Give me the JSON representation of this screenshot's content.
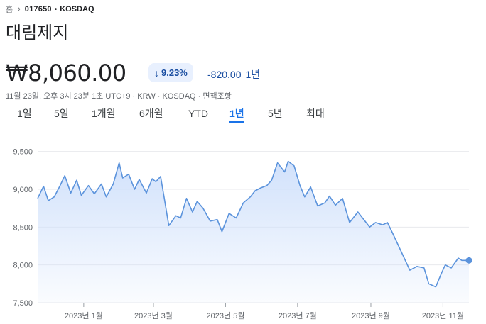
{
  "breadcrumb": {
    "home": "홈",
    "chevron": "›",
    "ticker": "017650",
    "separator": "•",
    "exchange": "KOSDAQ"
  },
  "stock": {
    "name": "대림제지",
    "price": "₩8,060.00",
    "change_percent": "9.23%",
    "change_abs": "-820.00",
    "change_period": "1년",
    "meta": "11월 23일, 오후 3시 23분 1초 UTC+9 · KRW · KOSDAQ · 면책조항"
  },
  "tabs": [
    {
      "label": "1일",
      "active": false
    },
    {
      "label": "5일",
      "active": false
    },
    {
      "label": "1개월",
      "active": false
    },
    {
      "label": "6개월",
      "active": false
    },
    {
      "label": "YTD",
      "active": false
    },
    {
      "label": "1년",
      "active": true
    },
    {
      "label": "5년",
      "active": false
    },
    {
      "label": "최대",
      "active": false
    }
  ],
  "colors": {
    "accent": "#1a73e8",
    "line": "#5b93dc",
    "negative": "#1a4ea1",
    "fill_top": "#cfe0fb"
  },
  "chart_data": {
    "type": "area",
    "title": "",
    "xlabel": "",
    "ylabel": "",
    "ylim": [
      7500,
      9600
    ],
    "yticks": [
      7500,
      8000,
      8500,
      9000,
      9500
    ],
    "ytick_labels": [
      "7,500",
      "8,000",
      "8,500",
      "9,000",
      "9,500"
    ],
    "x_range": [
      "2022-11-23",
      "2023-11-23"
    ],
    "xticks": [
      {
        "date": "2023-01-01",
        "label": "2023년 1월"
      },
      {
        "date": "2023-03-01",
        "label": "2023년 3월"
      },
      {
        "date": "2023-05-01",
        "label": "2023년 5월"
      },
      {
        "date": "2023-07-01",
        "label": "2023년 7월"
      },
      {
        "date": "2023-09-01",
        "label": "2023년 9월"
      },
      {
        "date": "2023-11-01",
        "label": "2023년 11월"
      }
    ],
    "grid": true,
    "series": [
      {
        "x": [
          "2022-11-23",
          "2022-11-28",
          "2022-12-02",
          "2022-12-07",
          "2022-12-12",
          "2022-12-16",
          "2022-12-21",
          "2022-12-26",
          "2022-12-30",
          "2023-01-05",
          "2023-01-10",
          "2023-01-16",
          "2023-01-20",
          "2023-01-26",
          "2023-01-31",
          "2023-02-03",
          "2023-02-08",
          "2023-02-13",
          "2023-02-17",
          "2023-02-23",
          "2023-02-28",
          "2023-03-03",
          "2023-03-07",
          "2023-03-10",
          "2023-03-14",
          "2023-03-20",
          "2023-03-24",
          "2023-03-29",
          "2023-04-03",
          "2023-04-07",
          "2023-04-12",
          "2023-04-18",
          "2023-04-24",
          "2023-04-28",
          "2023-05-04",
          "2023-05-10",
          "2023-05-16",
          "2023-05-22",
          "2023-05-26",
          "2023-05-31",
          "2023-06-05",
          "2023-06-09",
          "2023-06-14",
          "2023-06-20",
          "2023-06-23",
          "2023-06-28",
          "2023-07-03",
          "2023-07-07",
          "2023-07-12",
          "2023-07-18",
          "2023-07-24",
          "2023-07-28",
          "2023-08-02",
          "2023-08-08",
          "2023-08-14",
          "2023-08-21",
          "2023-08-25",
          "2023-08-31",
          "2023-09-05",
          "2023-09-11",
          "2023-09-15",
          "2023-09-20",
          "2023-09-26",
          "2023-10-04",
          "2023-10-10",
          "2023-10-16",
          "2023-10-20",
          "2023-10-26",
          "2023-10-31",
          "2023-11-03",
          "2023-11-08",
          "2023-11-14",
          "2023-11-17",
          "2023-11-23"
        ],
        "values": [
          8880,
          9040,
          8850,
          8900,
          9050,
          9180,
          8950,
          9120,
          8920,
          9050,
          8940,
          9070,
          8900,
          9070,
          9350,
          9150,
          9200,
          9000,
          9130,
          8950,
          9140,
          9100,
          9170,
          8900,
          8520,
          8650,
          8620,
          8880,
          8700,
          8840,
          8750,
          8580,
          8600,
          8440,
          8680,
          8620,
          8820,
          8900,
          8980,
          9020,
          9050,
          9120,
          9350,
          9230,
          9370,
          9310,
          9050,
          8900,
          9030,
          8780,
          8820,
          8910,
          8790,
          8880,
          8560,
          8700,
          8620,
          8500,
          8560,
          8530,
          8560,
          8400,
          8200,
          7930,
          7980,
          7960,
          7750,
          7710,
          7900,
          8000,
          7960,
          8090,
          8060,
          8060
        ]
      }
    ]
  }
}
